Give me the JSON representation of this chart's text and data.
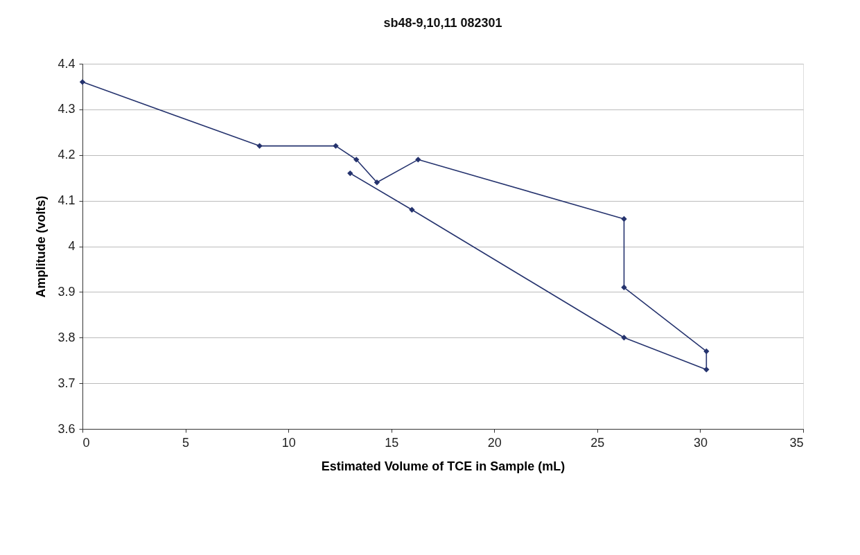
{
  "chart_data": {
    "type": "line",
    "title": "sb48-9,10,11   082301",
    "xlabel": "Estimated Volume of TCE in Sample (mL)",
    "ylabel": "Amplitude (volts)",
    "x": [
      0,
      8.6,
      12.3,
      13.3,
      14.3,
      16.3,
      26.3,
      26.3,
      30.3,
      30.3,
      26.3,
      16.0,
      13.0
    ],
    "series": [
      {
        "color": "#25336e",
        "values": [
          4.36,
          4.22,
          4.22,
          4.19,
          4.14,
          4.19,
          4.06,
          3.91,
          3.77,
          3.73,
          3.8,
          4.08,
          4.16
        ]
      }
    ],
    "xlim": [
      0,
      35
    ],
    "xticks": [
      0,
      5,
      10,
      15,
      20,
      25,
      30,
      35
    ],
    "ylim": [
      3.6,
      4.4
    ],
    "yticks": [
      3.6,
      3.7,
      3.8,
      3.9,
      4,
      4.1,
      4.2,
      4.3,
      4.4
    ],
    "grid": "y",
    "legend": false,
    "marker": "diamond",
    "line_style": "solid"
  }
}
